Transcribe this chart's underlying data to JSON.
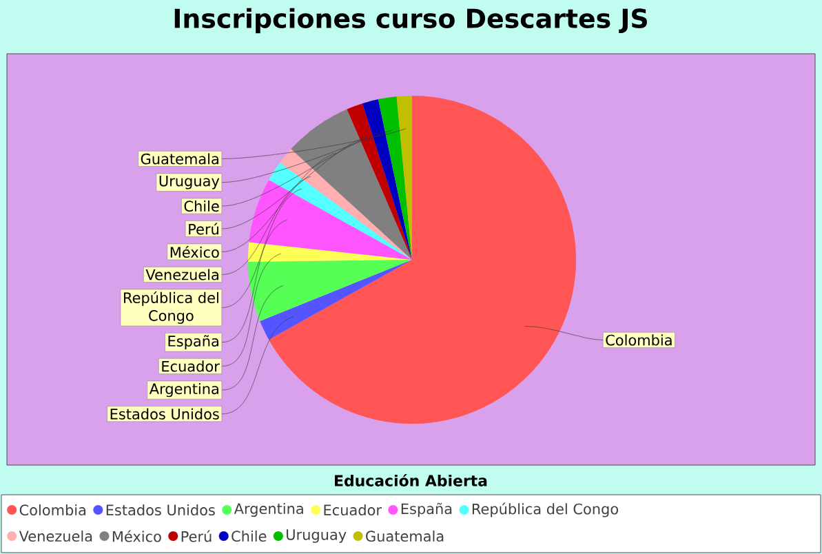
{
  "chart_data": {
    "type": "pie",
    "title": "Inscripciones curso Descartes JS",
    "annotations": [
      "Educación Abierta"
    ],
    "categories": [
      "Colombia",
      "Estados Unidos",
      "Argentina",
      "Ecuador",
      "España",
      "República del Congo",
      "Venezuela",
      "México",
      "Perú",
      "Chile",
      "Uruguay",
      "Guatemala"
    ],
    "values": [
      66.9,
      2,
      5.9,
      1.9,
      6.4,
      2,
      1.7,
      6.7,
      1.6,
      1.6,
      1.8,
      1.5
    ],
    "colors": [
      "#ff5555",
      "#5555ff",
      "#55ff55",
      "#ffff55",
      "#ff55ff",
      "#55ffff",
      "#ffafaf",
      "#808080",
      "#c00000",
      "#0000c0",
      "#00c000",
      "#c0c000"
    ],
    "legend": "bottom"
  }
}
